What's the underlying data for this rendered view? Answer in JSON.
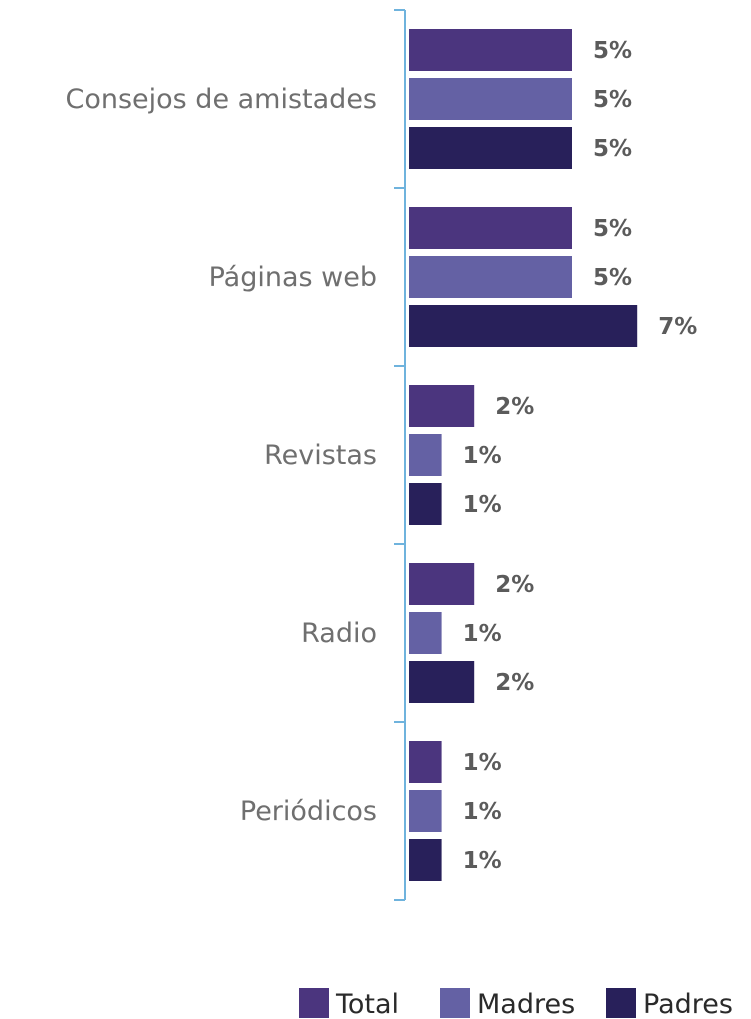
{
  "chart_data": {
    "type": "bar",
    "orientation": "horizontal",
    "categories": [
      "Consejos de amistades",
      "Páginas web",
      "Revistas",
      "Radio",
      "Periódicos"
    ],
    "series": [
      {
        "name": "Total",
        "color": "#4b357e",
        "values": [
          5,
          5,
          2,
          2,
          1
        ],
        "labels": [
          "5%",
          "5%",
          "2%",
          "2%",
          "1%"
        ]
      },
      {
        "name": "Madres",
        "color": "#6461a4",
        "values": [
          5,
          5,
          1,
          1,
          1
        ],
        "labels": [
          "5%",
          "5%",
          "1%",
          "1%",
          "1%"
        ]
      },
      {
        "name": "Padres",
        "color": "#28205a",
        "values": [
          5,
          7,
          1,
          2,
          1
        ],
        "labels": [
          "5%",
          "7%",
          "1%",
          "2%",
          "1%"
        ]
      }
    ],
    "axis_color": "#6fb3dd",
    "legend_position": "bottom-right",
    "grid": false
  }
}
